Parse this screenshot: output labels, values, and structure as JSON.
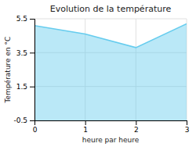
{
  "chart_data": {
    "type": "area",
    "title": "Evolution de la température",
    "xlabel": "heure par heure",
    "ylabel": "Température en °C",
    "x": [
      0,
      1,
      2,
      3
    ],
    "values": [
      5.1,
      4.6,
      3.8,
      5.2
    ],
    "color": "#66ccee",
    "xlim": [
      0,
      3
    ],
    "xticks": [
      0,
      1,
      2,
      3
    ],
    "ylim": [
      -0.5,
      5.5
    ],
    "yticks": [
      -0.5,
      1.5,
      3.5,
      5.5
    ],
    "grid": true
  }
}
